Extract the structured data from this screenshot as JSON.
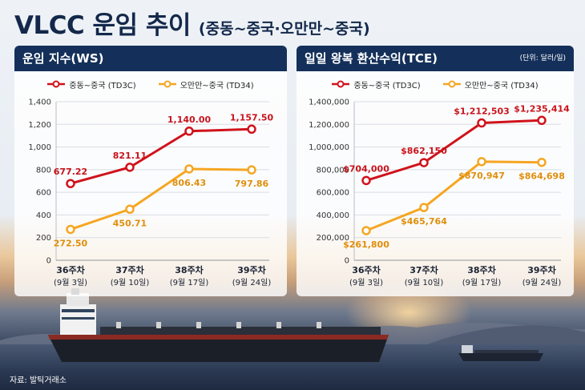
{
  "title": "VLCC 운임 추이",
  "subtitle": "(중동~중국·오만만~중국)",
  "source": "자료: 발틱거래소",
  "colors": {
    "td3c": "#d0121b",
    "td34": "#f5a623",
    "header": "#14305a"
  },
  "chart_data": [
    {
      "type": "line",
      "title": "운임 지수(WS)",
      "categories": [
        "36주차",
        "37주차",
        "38주차",
        "39주차"
      ],
      "category_sublabels": [
        "(9월 3일)",
        "(9월 10일)",
        "(9월 17일)",
        "(9월 24일)"
      ],
      "ylim": [
        0,
        1400
      ],
      "yticks": [
        0,
        200,
        400,
        600,
        800,
        1000,
        1200,
        1400
      ],
      "ytick_labels": [
        "0",
        "200",
        "400",
        "600",
        "800",
        "1,000",
        "1,200",
        "1,400"
      ],
      "grid": true,
      "legend": "top",
      "series": [
        {
          "name": "중동~중국 (TD3C)",
          "values": [
            677.22,
            821.11,
            1140.0,
            1157.5
          ],
          "labels": [
            "677.22",
            "821.11",
            "1,140.00",
            "1,157.50"
          ]
        },
        {
          "name": "오만만~중국 (TD34)",
          "values": [
            272.5,
            450.71,
            806.43,
            797.86
          ],
          "labels": [
            "272.50",
            "450.71",
            "806.43",
            "797.86"
          ]
        }
      ]
    },
    {
      "type": "line",
      "title": "일일 왕복 환산수익(TCE)",
      "unit": "(단위: 달러/일)",
      "categories": [
        "36주차",
        "37주차",
        "38주차",
        "39주차"
      ],
      "category_sublabels": [
        "(9월 3일)",
        "(9월 10일)",
        "(9월 17일)",
        "(9월 24일)"
      ],
      "ylim": [
        0,
        1400000
      ],
      "yticks": [
        0,
        200000,
        400000,
        600000,
        800000,
        1000000,
        1200000,
        1400000
      ],
      "ytick_labels": [
        "0",
        "200,000",
        "400,000",
        "600,000",
        "800,000",
        "1,000,000",
        "1,200,000",
        "1,400,000"
      ],
      "grid": true,
      "legend": "top",
      "series": [
        {
          "name": "중동~중국 (TD3C)",
          "values": [
            704000,
            862150,
            1212503,
            1235414
          ],
          "labels": [
            "$704,000",
            "$862,150",
            "$1,212,503",
            "$1,235,414"
          ]
        },
        {
          "name": "오만만~중국 (TD34)",
          "values": [
            261800,
            465764,
            870947,
            864698
          ],
          "labels": [
            "$261,800",
            "$465,764",
            "$870,947",
            "$864,698"
          ]
        }
      ]
    }
  ]
}
